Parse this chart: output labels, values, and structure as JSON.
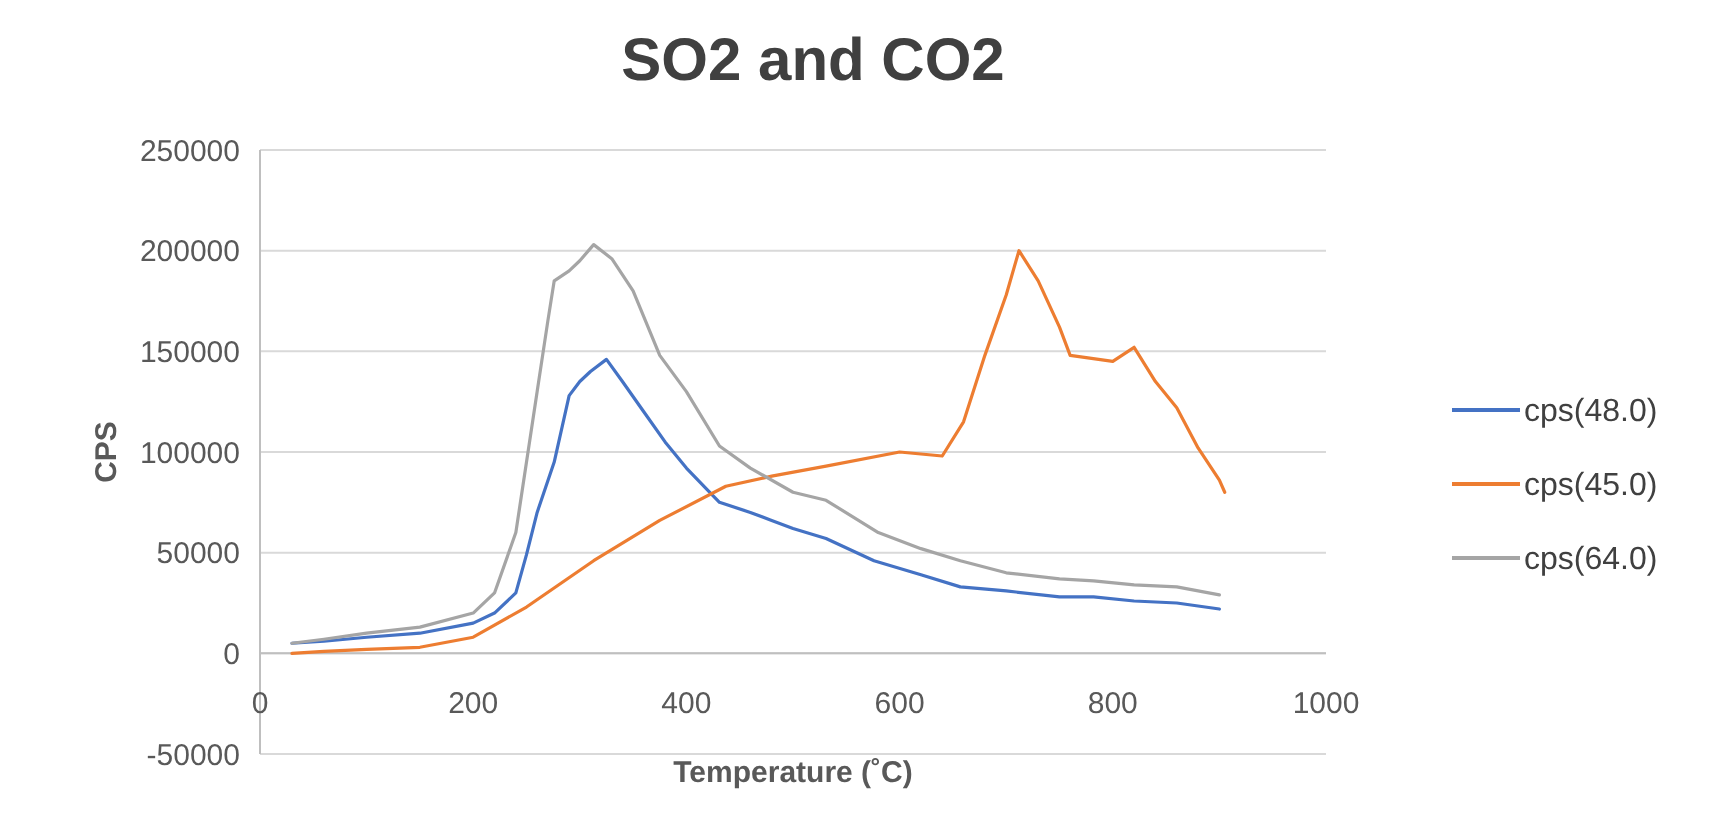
{
  "chart_data": {
    "type": "line",
    "title": "SO2 and CO2",
    "xlabel": "Temperature (˚C)",
    "ylabel": "CPS",
    "xlim": [
      0,
      1000
    ],
    "xticks": [
      0,
      200,
      400,
      600,
      800,
      1000
    ],
    "ylim": [
      -50000,
      250000
    ],
    "yticks": [
      -50000,
      0,
      50000,
      100000,
      150000,
      200000,
      250000
    ],
    "grid": "y",
    "legend": "right",
    "series": [
      {
        "name": "cps(48.0)",
        "color": "#4472c4",
        "x": [
          30,
          60,
          100,
          150,
          200,
          220,
          240,
          250,
          260,
          276,
          290,
          300,
          310,
          325,
          340,
          360,
          380,
          400,
          431,
          460,
          480,
          500,
          531,
          576,
          620,
          657,
          700,
          750,
          782,
          820,
          860,
          900
        ],
        "values": [
          5000,
          6000,
          8000,
          10000,
          15000,
          20000,
          30000,
          49000,
          70000,
          95000,
          128000,
          135000,
          140000,
          146000,
          135000,
          120000,
          105000,
          92000,
          75000,
          70000,
          66000,
          62000,
          57000,
          46000,
          39000,
          33000,
          31000,
          28000,
          28000,
          26000,
          25000,
          22000
        ]
      },
      {
        "name": "cps(45.0)",
        "color": "#ed7d31",
        "x": [
          30,
          60,
          100,
          150,
          200,
          250,
          313,
          375,
          437,
          480,
          531,
          600,
          640,
          660,
          680,
          700,
          712,
          730,
          750,
          760,
          800,
          820,
          840,
          860,
          880,
          900,
          905
        ],
        "values": [
          0,
          1000,
          2000,
          3000,
          8000,
          23000,
          46000,
          66000,
          83000,
          88000,
          93000,
          100000,
          98000,
          115000,
          148000,
          178000,
          200000,
          185000,
          162000,
          148000,
          145000,
          152000,
          135000,
          122000,
          102000,
          86000,
          80000
        ]
      },
      {
        "name": "cps(64.0)",
        "color": "#a5a5a5",
        "x": [
          30,
          60,
          100,
          150,
          200,
          220,
          240,
          250,
          260,
          270,
          276,
          290,
          300,
          313,
          330,
          350,
          375,
          400,
          431,
          460,
          500,
          531,
          580,
          620,
          657,
          700,
          750,
          782,
          820,
          860,
          900
        ],
        "values": [
          5000,
          7000,
          10000,
          13000,
          20000,
          30000,
          60000,
          95000,
          130000,
          165000,
          185000,
          190000,
          195000,
          203000,
          196000,
          180000,
          148000,
          130000,
          103000,
          92000,
          80000,
          76000,
          60000,
          52000,
          46000,
          40000,
          37000,
          36000,
          34000,
          33000,
          29000
        ]
      }
    ]
  }
}
